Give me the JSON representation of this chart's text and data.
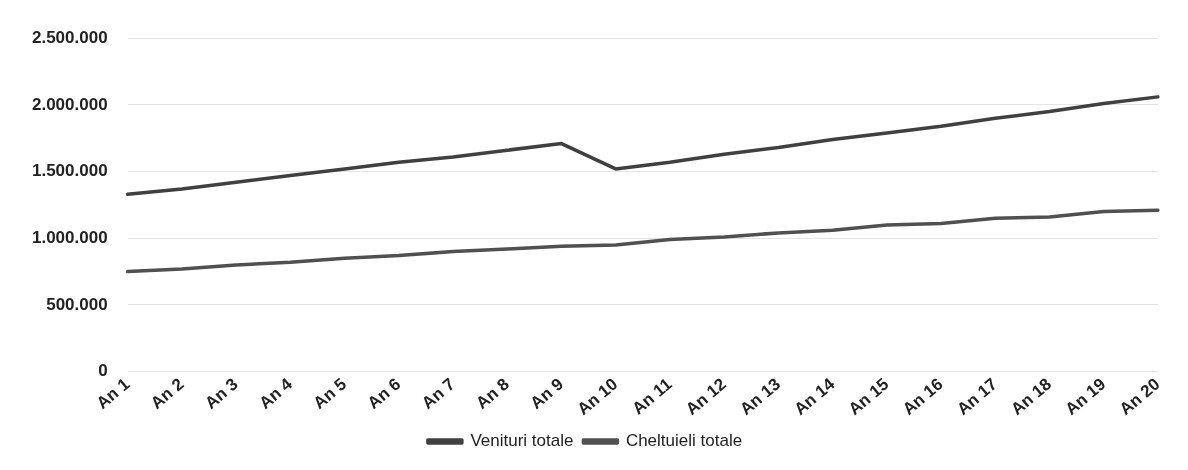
{
  "chart_data": {
    "type": "line",
    "categories": [
      "An 1",
      "An 2",
      "An 3",
      "An 4",
      "An 5",
      "An 6",
      "An 7",
      "An 8",
      "An 9",
      "An 10",
      "An 11",
      "An 12",
      "An 13",
      "An 14",
      "An 15",
      "An 16",
      "An 17",
      "An 18",
      "An 19",
      "An 20"
    ],
    "series": [
      {
        "name": "Venituri totale",
        "color": "#404040",
        "values": [
          1330000,
          1370000,
          1420000,
          1470000,
          1520000,
          1570000,
          1610000,
          1660000,
          1710000,
          1520000,
          1570000,
          1630000,
          1680000,
          1740000,
          1790000,
          1840000,
          1900000,
          1950000,
          2010000,
          2060000
        ]
      },
      {
        "name": "Cheltuieli totale",
        "color": "#505050",
        "values": [
          750000,
          770000,
          800000,
          820000,
          850000,
          870000,
          900000,
          920000,
          940000,
          950000,
          990000,
          1010000,
          1040000,
          1060000,
          1100000,
          1110000,
          1150000,
          1160000,
          1200000,
          1210000
        ]
      }
    ],
    "ylim": [
      0,
      2500000
    ],
    "yticks": [
      {
        "value": 0,
        "label": "0"
      },
      {
        "value": 500000,
        "label": "500.000"
      },
      {
        "value": 1000000,
        "label": "1.000.000"
      },
      {
        "value": 1500000,
        "label": "1.500.000"
      },
      {
        "value": 2000000,
        "label": "2.000.000"
      },
      {
        "value": 2500000,
        "label": "2.500.000"
      }
    ],
    "grid": "y",
    "legend": "bottom",
    "marker": "none",
    "line_style": "solid"
  }
}
